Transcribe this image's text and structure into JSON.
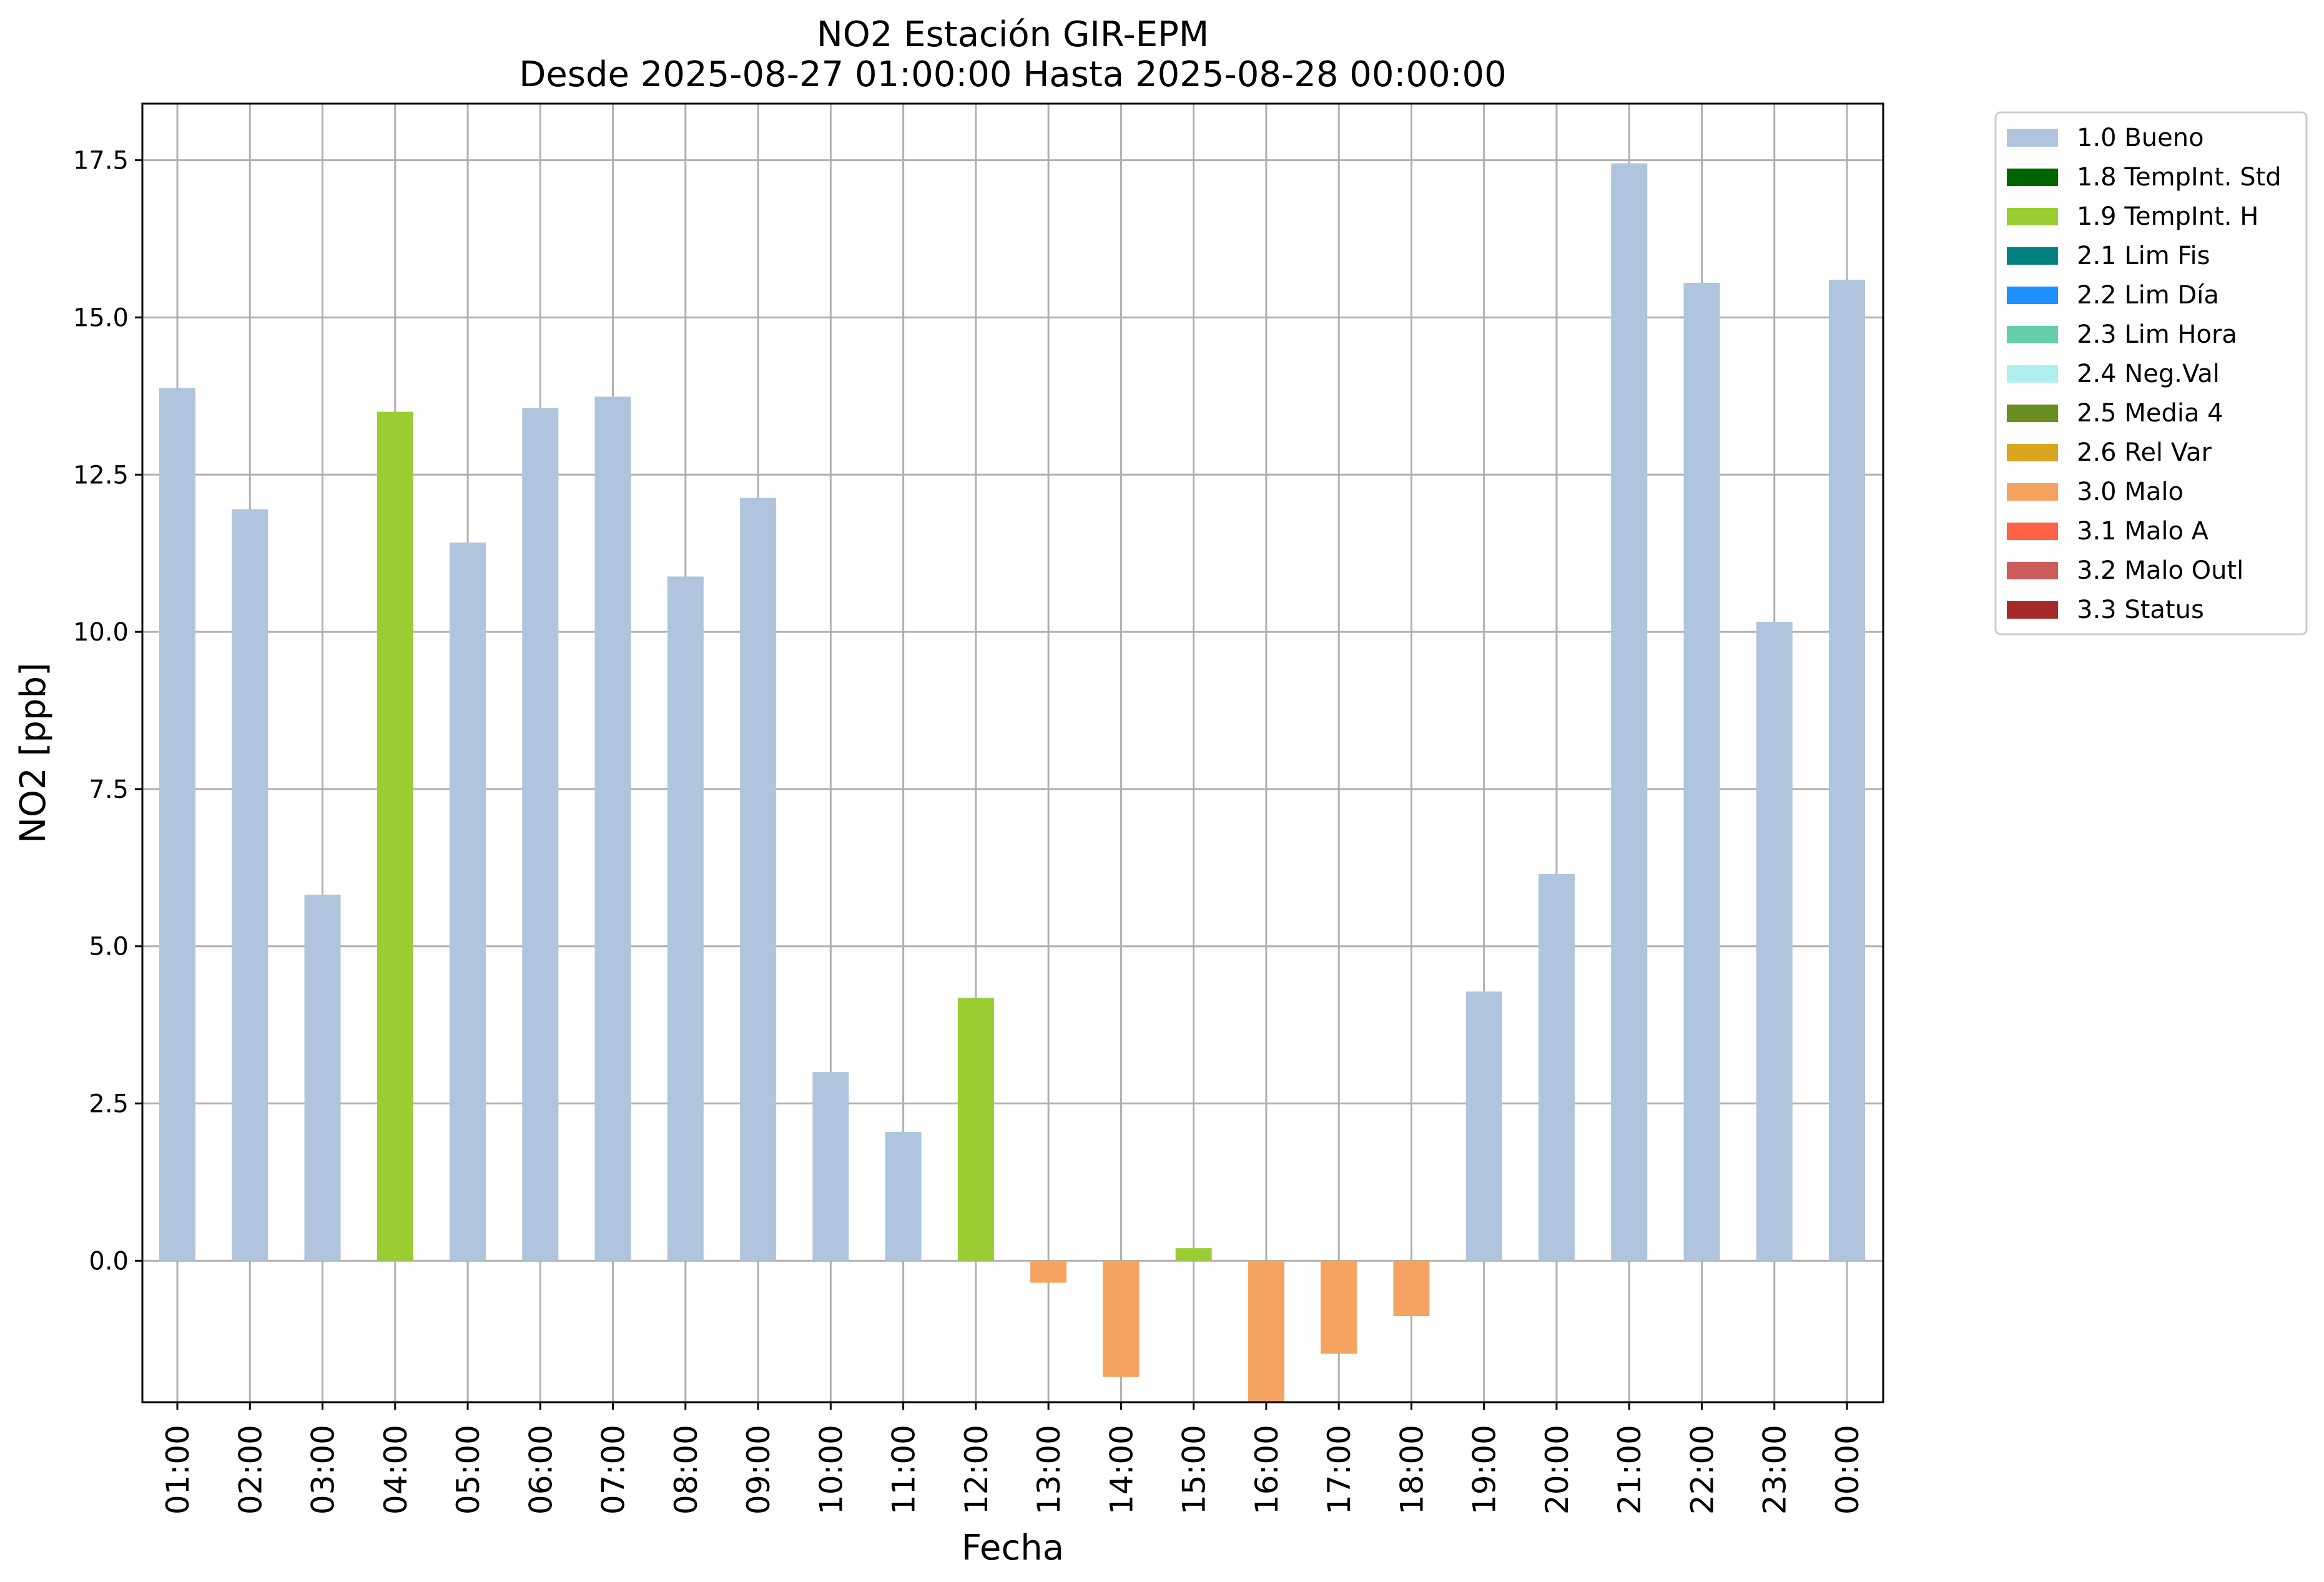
{
  "chart_data": {
    "type": "bar",
    "title_line1": "NO2 Estación GIR-EPM",
    "title_line2": "Desde 2025-08-27 01:00:00 Hasta 2025-08-28 00:00:00",
    "xlabel": "Fecha",
    "ylabel": "NO2 [ppb]",
    "ylim": [
      -2.25,
      18.4
    ],
    "yticks": [
      "0.0",
      "2.5",
      "5.0",
      "7.5",
      "10.0",
      "12.5",
      "15.0",
      "17.5"
    ],
    "grid": true,
    "legend_position": "outside-top-right",
    "categories": [
      "01:00",
      "02:00",
      "03:00",
      "04:00",
      "05:00",
      "06:00",
      "07:00",
      "08:00",
      "09:00",
      "10:00",
      "11:00",
      "12:00",
      "13:00",
      "14:00",
      "15:00",
      "16:00",
      "17:00",
      "18:00",
      "19:00",
      "20:00",
      "21:00",
      "22:00",
      "23:00",
      "00:00"
    ],
    "values": [
      13.88,
      11.95,
      5.82,
      13.5,
      11.42,
      13.56,
      13.74,
      10.88,
      12.13,
      3.0,
      2.05,
      4.18,
      -0.35,
      -1.85,
      0.2,
      -2.25,
      -1.48,
      -0.88,
      4.28,
      6.15,
      17.45,
      15.55,
      10.16,
      15.6
    ],
    "flags": [
      "1.0",
      "1.0",
      "1.0",
      "1.9",
      "1.0",
      "1.0",
      "1.0",
      "1.0",
      "1.0",
      "1.0",
      "1.0",
      "1.9",
      "3.0",
      "3.0",
      "1.9",
      "3.0",
      "3.0",
      "3.0",
      "1.0",
      "1.0",
      "1.0",
      "1.0",
      "1.0",
      "1.0"
    ],
    "legend": [
      {
        "code": "1.0",
        "label": "1.0 Bueno",
        "color": "#b0c4de"
      },
      {
        "code": "1.8",
        "label": "1.8 TempInt. Std",
        "color": "#006400"
      },
      {
        "code": "1.9",
        "label": "1.9 TempInt. H",
        "color": "#9acd32"
      },
      {
        "code": "2.1",
        "label": "2.1 Lim Fis",
        "color": "#008080"
      },
      {
        "code": "2.2",
        "label": "2.2 Lim Día",
        "color": "#1e90ff"
      },
      {
        "code": "2.3",
        "label": "2.3 Lim Hora",
        "color": "#66cdaa"
      },
      {
        "code": "2.4",
        "label": "2.4 Neg.Val",
        "color": "#afeeee"
      },
      {
        "code": "2.5",
        "label": "2.5 Media 4",
        "color": "#6b8e23"
      },
      {
        "code": "2.6",
        "label": "2.6 Rel Var",
        "color": "#daa520"
      },
      {
        "code": "3.0",
        "label": "3.0 Malo",
        "color": "#f4a460"
      },
      {
        "code": "3.1",
        "label": "3.1 Malo A",
        "color": "#ff6347"
      },
      {
        "code": "3.2",
        "label": "3.2 Malo Outl",
        "color": "#cd5c5c"
      },
      {
        "code": "3.3",
        "label": "3.3 Status",
        "color": "#a52a2a"
      }
    ]
  }
}
